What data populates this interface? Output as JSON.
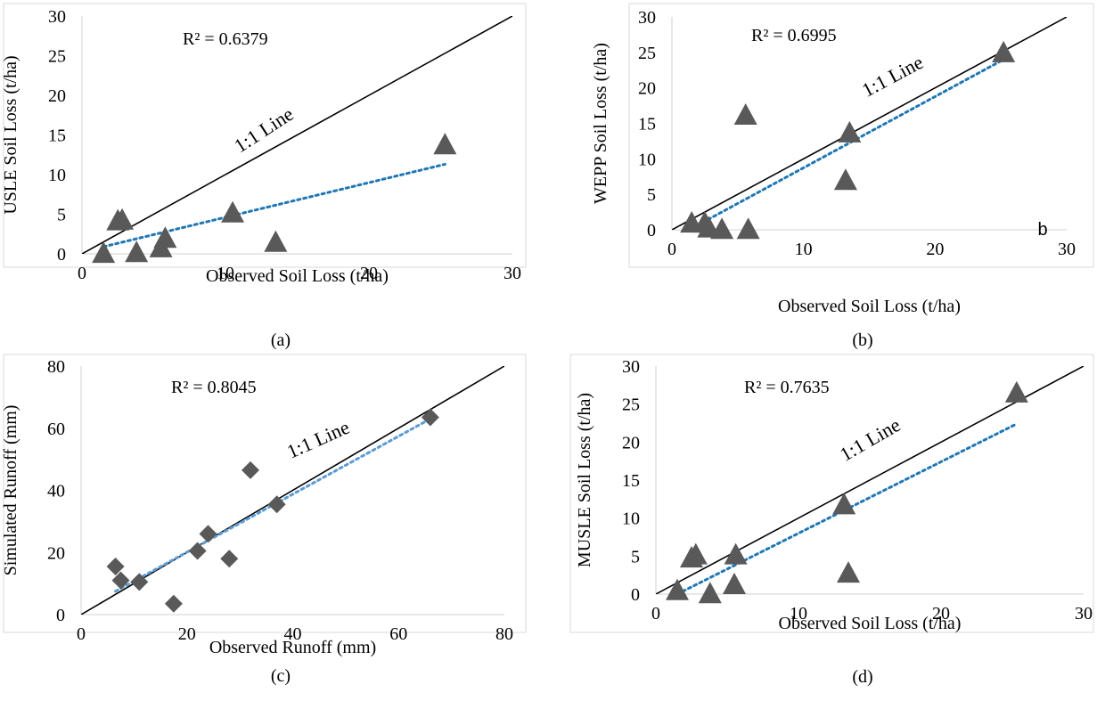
{
  "chart_data": [
    {
      "type": "scatter",
      "panel_label": "(a)",
      "xlabel": "Observed Soil Loss (t/ha)",
      "ylabel": "USLE Soil Loss (t/ha)",
      "xlim": [
        0,
        30
      ],
      "ylim": [
        0,
        30
      ],
      "xticks": [
        0,
        10,
        20,
        30
      ],
      "yticks": [
        0,
        5,
        10,
        15,
        20,
        25,
        30
      ],
      "marker": "triangle",
      "r2_label": "R² = 0.6379",
      "line_label": "1:1 Line",
      "extra_label": "",
      "points": {
        "x": [
          1.5,
          2.5,
          2.8,
          3.8,
          5.5,
          5.8,
          10.5,
          13.5,
          25.3
        ],
        "y": [
          0.1,
          4.2,
          4.3,
          0.2,
          0.8,
          2.0,
          5.2,
          1.5,
          13.8
        ]
      },
      "trendline": {
        "x": [
          1.5,
          25.3
        ],
        "y": [
          0.9,
          11.3
        ]
      },
      "colors": {
        "marker": "#595959",
        "trend": "#1f77b4",
        "oneone": "#000000"
      }
    },
    {
      "type": "scatter",
      "panel_label": "(b)",
      "xlabel": "Observed Soil Loss (t/ha)",
      "ylabel": "WEPP  Soil Loss (t/ha)",
      "xlim": [
        0,
        30
      ],
      "ylim": [
        0,
        30
      ],
      "xticks": [
        0,
        10,
        20,
        30
      ],
      "yticks": [
        0,
        5,
        10,
        15,
        20,
        25,
        30
      ],
      "marker": "triangle",
      "r2_label": "R² = 0.6995",
      "line_label": "1:1 Line",
      "extra_label": "b",
      "points": {
        "x": [
          1.5,
          2.5,
          2.8,
          3.8,
          5.8,
          5.6,
          13.2,
          13.5,
          25.2
        ],
        "y": [
          1.0,
          1.0,
          0.3,
          0.1,
          0.1,
          16.2,
          7.0,
          13.7,
          25.0
        ]
      },
      "trendline": {
        "x": [
          1.5,
          25.2
        ],
        "y": [
          0.2,
          24.0
        ]
      },
      "colors": {
        "marker": "#595959",
        "trend": "#1f77b4",
        "oneone": "#000000"
      }
    },
    {
      "type": "scatter",
      "panel_label": "(c)",
      "xlabel": "Observed Runoff (mm)",
      "ylabel": "Simulated Runoff (mm)",
      "xlim": [
        0,
        80
      ],
      "ylim": [
        0,
        80
      ],
      "xticks": [
        0,
        20,
        40,
        60,
        80
      ],
      "yticks": [
        0,
        20,
        40,
        60,
        80
      ],
      "marker": "diamond",
      "r2_label": "R² = 0.8045",
      "line_label": "1:1 Line",
      "extra_label": "",
      "points": {
        "x": [
          6.5,
          7.5,
          11,
          17.5,
          22,
          24,
          28,
          32,
          37,
          66
        ],
        "y": [
          15.5,
          11,
          10.5,
          3.5,
          20.5,
          26,
          18,
          46.5,
          35.5,
          63.5
        ]
      },
      "trendline": {
        "x": [
          6.5,
          66
        ],
        "y": [
          7.5,
          63.0
        ]
      },
      "colors": {
        "marker": "#595959",
        "trend": "#5b9bd5",
        "oneone": "#000000"
      }
    },
    {
      "type": "scatter",
      "panel_label": "(d)",
      "xlabel": "Observed Soil Loss (t/ha)",
      "ylabel": "MUSLE Soil Loss (t/ha)",
      "xlim": [
        0,
        30
      ],
      "ylim": [
        0,
        30
      ],
      "xticks": [
        0,
        10,
        20,
        30
      ],
      "yticks": [
        0,
        5,
        10,
        15,
        20,
        25,
        30
      ],
      "marker": "triangle",
      "r2_label": "R² = 0.7635",
      "line_label": "1:1 Line",
      "extra_label": "",
      "points": {
        "x": [
          1.5,
          2.5,
          2.8,
          3.8,
          5.5,
          5.6,
          13.2,
          13.5,
          25.3
        ],
        "y": [
          0.5,
          4.8,
          5.2,
          0.1,
          1.3,
          5.2,
          11.8,
          2.8,
          26.5
        ]
      },
      "trendline": {
        "x": [
          1.5,
          25.2
        ],
        "y": [
          0.0,
          22.3
        ]
      },
      "colors": {
        "marker": "#595959",
        "trend": "#1f77b4",
        "oneone": "#000000"
      }
    }
  ]
}
